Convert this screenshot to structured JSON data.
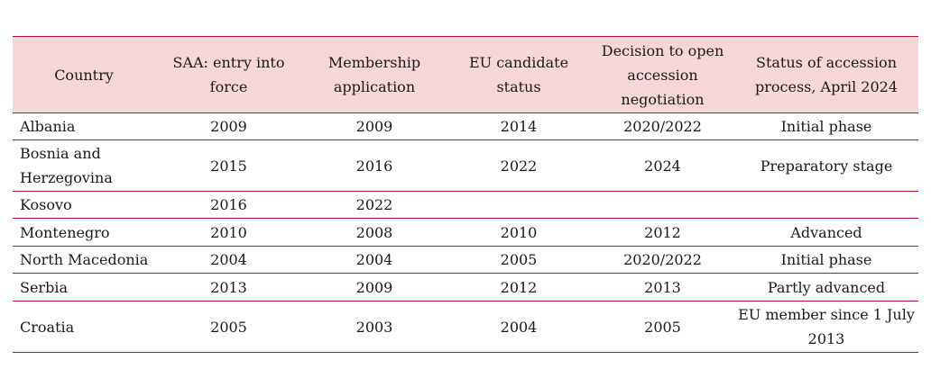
{
  "colors": {
    "header_background": "#f6d7d7",
    "rule": "#b4142e",
    "text": "#1a1a1a"
  },
  "table": {
    "headers": [
      "Country",
      "SAA: entry into force",
      "Membership application",
      "EU candidate status",
      "Decision to open accession negotiation",
      "Status of accession process, April 2024"
    ],
    "rows": [
      [
        "Albania",
        "2009",
        "2009",
        "2014",
        "2020/2022",
        "Initial phase"
      ],
      [
        "Bosnia and Herzegovina",
        "2015",
        "2016",
        "2022",
        "2024",
        "Preparatory stage"
      ],
      [
        "Kosovo",
        "2016",
        "2022",
        "",
        "",
        ""
      ],
      [
        "Montenegro",
        "2010",
        "2008",
        "2010",
        "2012",
        "Advanced"
      ],
      [
        "North Macedonia",
        "2004",
        "2004",
        "2005",
        "2020/2022",
        "Initial phase"
      ],
      [
        "Serbia",
        "2013",
        "2009",
        "2012",
        "2013",
        "Partly advanced"
      ],
      [
        "Croatia",
        "2005",
        "2003",
        "2004",
        "2005",
        "EU member since 1 July 2013"
      ]
    ]
  }
}
